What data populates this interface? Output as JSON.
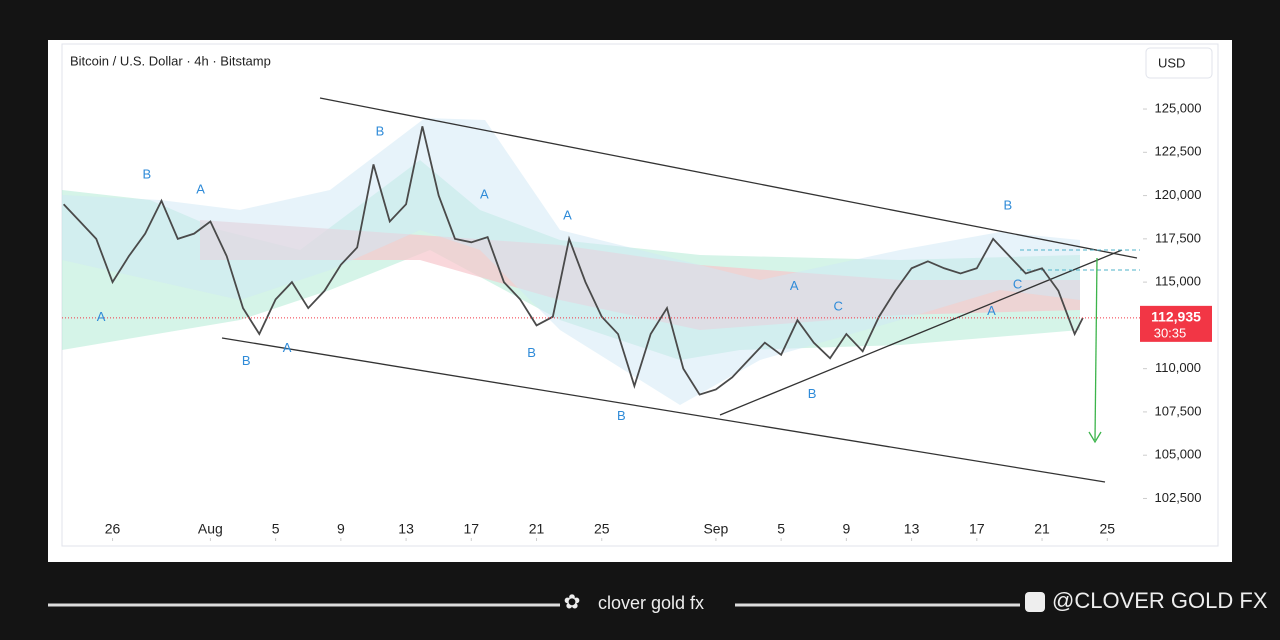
{
  "chart_data": {
    "type": "line",
    "title": "Bitcoin / U.S. Dollar · 4h · Bitstamp",
    "currency": "USD",
    "last_price": {
      "value": 112935,
      "label": "112,935"
    },
    "countdown": "30:35",
    "color": "#4a4a4a",
    "x": [
      -3,
      -2,
      -1,
      0,
      1,
      2,
      3,
      4,
      5,
      6,
      7,
      8,
      9,
      10,
      11,
      12,
      13,
      14,
      15,
      16,
      17,
      18,
      19,
      20,
      21,
      22,
      23,
      24,
      25,
      26,
      27,
      28,
      29,
      30,
      31,
      32,
      33,
      34,
      35,
      36,
      37,
      38,
      39,
      40,
      41,
      42,
      43,
      44,
      45,
      46,
      47,
      48,
      49,
      50,
      51,
      52,
      53,
      54,
      55,
      56,
      57,
      58,
      59,
      59.5
    ],
    "values": [
      119500,
      118500,
      117500,
      115000,
      116500,
      117800,
      119700,
      117500,
      117800,
      118500,
      116500,
      113500,
      112000,
      114000,
      115000,
      113500,
      114500,
      116000,
      117000,
      121800,
      118500,
      119500,
      124000,
      120000,
      117500,
      117300,
      117600,
      115000,
      114000,
      112500,
      113000,
      117500,
      115000,
      113000,
      112000,
      109000,
      112000,
      113500,
      110000,
      108500,
      108800,
      109500,
      110500,
      111500,
      110800,
      112800,
      111500,
      110600,
      112000,
      111000,
      113000,
      114500,
      115800,
      116200,
      115800,
      115500,
      115800,
      117500,
      116500,
      115500,
      115800,
      114500,
      112000,
      112935
    ],
    "xlim": [
      -3.1,
      62.7
    ],
    "xticks": [
      {
        "value": 0,
        "label": "26"
      },
      {
        "value": 6,
        "label": "Aug"
      },
      {
        "value": 10,
        "label": "5"
      },
      {
        "value": 14,
        "label": "9"
      },
      {
        "value": 18,
        "label": "13"
      },
      {
        "value": 22,
        "label": "17"
      },
      {
        "value": 26,
        "label": "21"
      },
      {
        "value": 30,
        "label": "25"
      },
      {
        "value": 37,
        "label": "Sep"
      },
      {
        "value": 41,
        "label": "5"
      },
      {
        "value": 45,
        "label": "9"
      },
      {
        "value": 49,
        "label": "13"
      },
      {
        "value": 53,
        "label": "17"
      },
      {
        "value": 57,
        "label": "21"
      },
      {
        "value": 61,
        "label": "25"
      }
    ],
    "ylim": [
      100100,
      128700
    ],
    "yticks": [
      {
        "value": 102500,
        "label": "102,500"
      },
      {
        "value": 105000,
        "label": "105,000"
      },
      {
        "value": 107500,
        "label": "107,500"
      },
      {
        "value": 110000,
        "label": "110,000"
      },
      {
        "value": 112500,
        "label": "112,500"
      },
      {
        "value": 115000,
        "label": "115,000"
      },
      {
        "value": 117500,
        "label": "117,500"
      },
      {
        "value": 120000,
        "label": "120,000"
      },
      {
        "value": 122500,
        "label": "122,500"
      },
      {
        "value": 125000,
        "label": "125,000"
      }
    ],
    "grid": false,
    "annotations": [
      {
        "text": "B",
        "x": 2.1,
        "y": 121190
      },
      {
        "text": "A",
        "x": 5.4,
        "y": 120330
      },
      {
        "text": "A",
        "x": -0.7,
        "y": 112940
      },
      {
        "text": "B",
        "x": 8.2,
        "y": 110400
      },
      {
        "text": "A",
        "x": 10.7,
        "y": 111150
      },
      {
        "text": "B",
        "x": 16.4,
        "y": 123670
      },
      {
        "text": "A",
        "x": 22.8,
        "y": 120040
      },
      {
        "text": "A",
        "x": 27.9,
        "y": 118830
      },
      {
        "text": "B",
        "x": 25.7,
        "y": 110860
      },
      {
        "text": "B",
        "x": 31.2,
        "y": 107230
      },
      {
        "text": "A",
        "x": 41.8,
        "y": 114730
      },
      {
        "text": "B",
        "x": 42.9,
        "y": 108500
      },
      {
        "text": "C",
        "x": 44.5,
        "y": 113570
      },
      {
        "text": "B",
        "x": 54.9,
        "y": 119400
      },
      {
        "text": "A",
        "x": 53.9,
        "y": 113290
      },
      {
        "text": "C",
        "x": 55.5,
        "y": 114840
      }
    ]
  },
  "footer": {
    "brand": "clover gold fx",
    "handle": "@CLOVER GOLD FX"
  }
}
